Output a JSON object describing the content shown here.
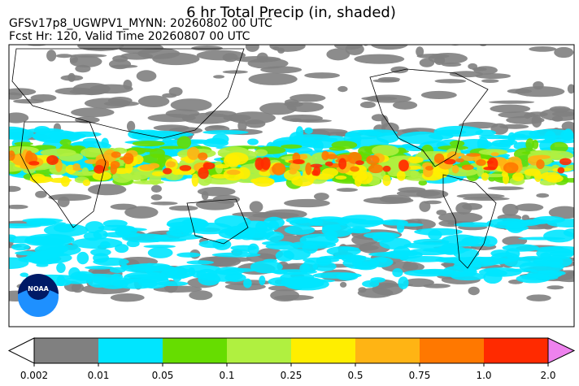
{
  "header": {
    "title": "6 hr Total Precip (in, shaded)",
    "lines": [
      "GFSv17p8_UGWPV1_MYNN: 20260802 00 UTC",
      "Fcst Hr: 120, Valid Time 20260807 00 UTC"
    ]
  },
  "logo": "NOAA",
  "colorbar": {
    "ticks": [
      0.002,
      0.01,
      0.05,
      0.1,
      0.25,
      0.5,
      0.75,
      {
        "value": 1,
        "label": "1.0"
      },
      {
        "value": 2,
        "label": "2.0"
      }
    ],
    "under_color": "#ffffff",
    "colors": [
      "#808080",
      "#00e5ff",
      "#66dd00",
      "#b0f040",
      "#ffee00",
      "#ffb414",
      "#ff7800",
      "#ff2a00"
    ],
    "over_color": "#ee82ee"
  }
}
